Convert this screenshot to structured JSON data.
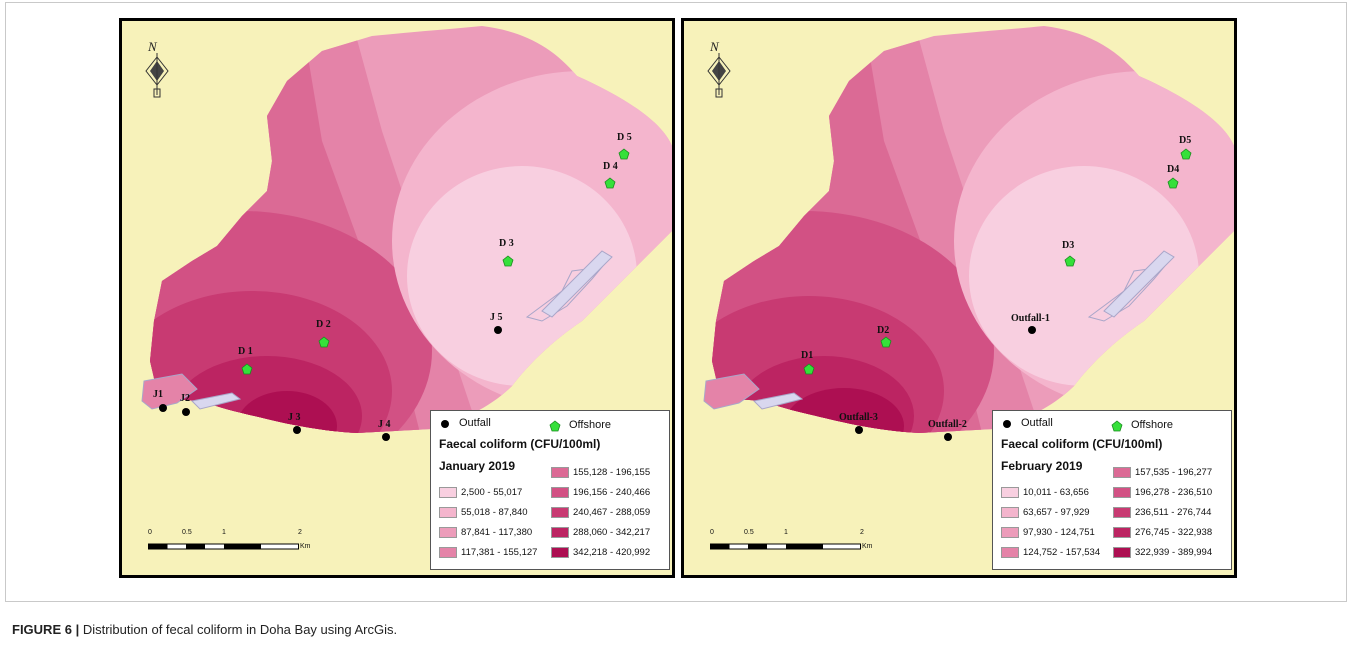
{
  "caption": {
    "label": "FIGURE 6 |",
    "text": "Distribution of fecal coliform in Doha Bay using ArcGis."
  },
  "north_label": "N",
  "legend_common": {
    "outfall": "Outfall",
    "offshore": "Offshore",
    "title": "Faecal coliform (CFU/100ml)"
  },
  "scale": {
    "ticks": [
      "0",
      "0.5",
      "1",
      "2"
    ],
    "unit": "Km"
  },
  "colors": {
    "land": "#f7f2ba",
    "shape_outline": "#a9a6c9",
    "offshore_marker": "#35e03a",
    "outfall_marker": "#000000"
  },
  "panels": [
    {
      "month": "January 2019",
      "classes": [
        {
          "range": "2,500 - 55,017",
          "color": "#f8cfe0"
        },
        {
          "range": "55,018 - 87,840",
          "color": "#f4b5cd"
        },
        {
          "range": "87,841 - 117,380",
          "color": "#ec9cba"
        },
        {
          "range": "117,381 - 155,127",
          "color": "#e483a8"
        },
        {
          "range": "155,128 - 196,155",
          "color": "#db6a95"
        },
        {
          "range": "196,156 - 240,466",
          "color": "#d25184"
        },
        {
          "range": "240,467 - 288,059",
          "color": "#c83a72"
        },
        {
          "range": "288,060 - 342,217",
          "color": "#bc2462"
        },
        {
          "range": "342,218 - 420,992",
          "color": "#ad0f52"
        }
      ],
      "outfalls": [
        "J1",
        "J2",
        "J 3",
        "J 4",
        "J 5"
      ],
      "offshore": [
        "D 1",
        "D 2",
        "D 3",
        "D 4",
        "D 5"
      ]
    },
    {
      "month": "February 2019",
      "classes": [
        {
          "range": "10,011 - 63,656",
          "color": "#f8cfe0"
        },
        {
          "range": "63,657 - 97,929",
          "color": "#f4b5cd"
        },
        {
          "range": "97,930 - 124,751",
          "color": "#ec9cba"
        },
        {
          "range": "124,752 - 157,534",
          "color": "#e483a8"
        },
        {
          "range": "157,535 - 196,277",
          "color": "#db6a95"
        },
        {
          "range": "196,278 - 236,510",
          "color": "#d25184"
        },
        {
          "range": "236,511 - 276,744",
          "color": "#c83a72"
        },
        {
          "range": "276,745 - 322,938",
          "color": "#bc2462"
        },
        {
          "range": "322,939 - 389,994",
          "color": "#ad0f52"
        }
      ],
      "outfalls": [
        "Outfall-3",
        "Outfall-2",
        "Outfall-1"
      ],
      "offshore": [
        "D1",
        "D2",
        "D3",
        "D4",
        "D5"
      ]
    }
  ]
}
